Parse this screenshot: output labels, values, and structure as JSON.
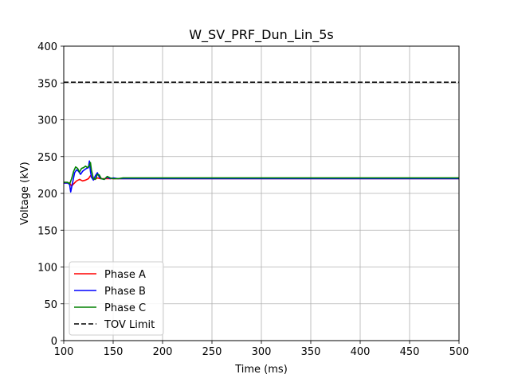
{
  "chart_data": {
    "type": "line",
    "title": "W_SV_PRF_Dun_Lin_5s",
    "xlabel": "Time (ms)",
    "ylabel": "Voltage (kV)",
    "xlim": [
      100,
      500
    ],
    "ylim": [
      0,
      400
    ],
    "xticks": [
      100,
      150,
      200,
      250,
      300,
      350,
      400,
      450,
      500
    ],
    "yticks": [
      0,
      50,
      100,
      150,
      200,
      250,
      300,
      350,
      400
    ],
    "grid": true,
    "legend_position": "lower-left",
    "series": [
      {
        "name": "Phase A",
        "color": "#ff0000",
        "style": "solid",
        "x": [
          100,
          106,
          108,
          110,
          113,
          116,
          119,
          122,
          125,
          127,
          129,
          131,
          134,
          137,
          140,
          145,
          150,
          160,
          180,
          200,
          250,
          300,
          350,
          400,
          450,
          500
        ],
        "y": [
          214,
          214,
          210,
          213,
          217,
          219,
          217,
          218,
          220,
          224,
          221,
          219,
          221,
          220,
          220,
          220,
          220,
          220,
          220,
          220,
          220,
          220,
          220,
          220,
          220,
          220
        ]
      },
      {
        "name": "Phase B",
        "color": "#0000ff",
        "style": "solid",
        "x": [
          100,
          104,
          106,
          107,
          109,
          111,
          113,
          115,
          117,
          119,
          121,
          123,
          125,
          126,
          127,
          128,
          130,
          132,
          134,
          136,
          138,
          141,
          144,
          147,
          150,
          155,
          160,
          180,
          200,
          250,
          300,
          350,
          400,
          450,
          500
        ],
        "y": [
          214,
          214,
          212,
          202,
          215,
          228,
          232,
          230,
          226,
          230,
          232,
          234,
          235,
          244,
          230,
          222,
          218,
          224,
          228,
          222,
          220,
          219,
          222,
          220,
          221,
          220,
          220,
          220,
          220,
          220,
          220,
          220,
          220,
          220,
          220
        ]
      },
      {
        "name": "Phase C",
        "color": "#008000",
        "style": "solid",
        "x": [
          100,
          104,
          106,
          108,
          110,
          112,
          114,
          116,
          118,
          120,
          122,
          124,
          126,
          127,
          128,
          130,
          132,
          134,
          136,
          138,
          141,
          144,
          147,
          150,
          155,
          160,
          180,
          200,
          250,
          300,
          350,
          400,
          450,
          500
        ],
        "y": [
          215,
          215,
          213,
          220,
          230,
          236,
          234,
          229,
          234,
          235,
          237,
          235,
          238,
          242,
          232,
          220,
          219,
          226,
          225,
          220,
          219,
          223,
          221,
          220,
          220,
          221,
          221,
          221,
          221,
          221,
          221,
          221,
          221,
          221
        ]
      },
      {
        "name": "TOV Limit",
        "color": "#000000",
        "style": "dashed",
        "x": [
          100,
          500
        ],
        "y": [
          351,
          351
        ]
      }
    ]
  }
}
